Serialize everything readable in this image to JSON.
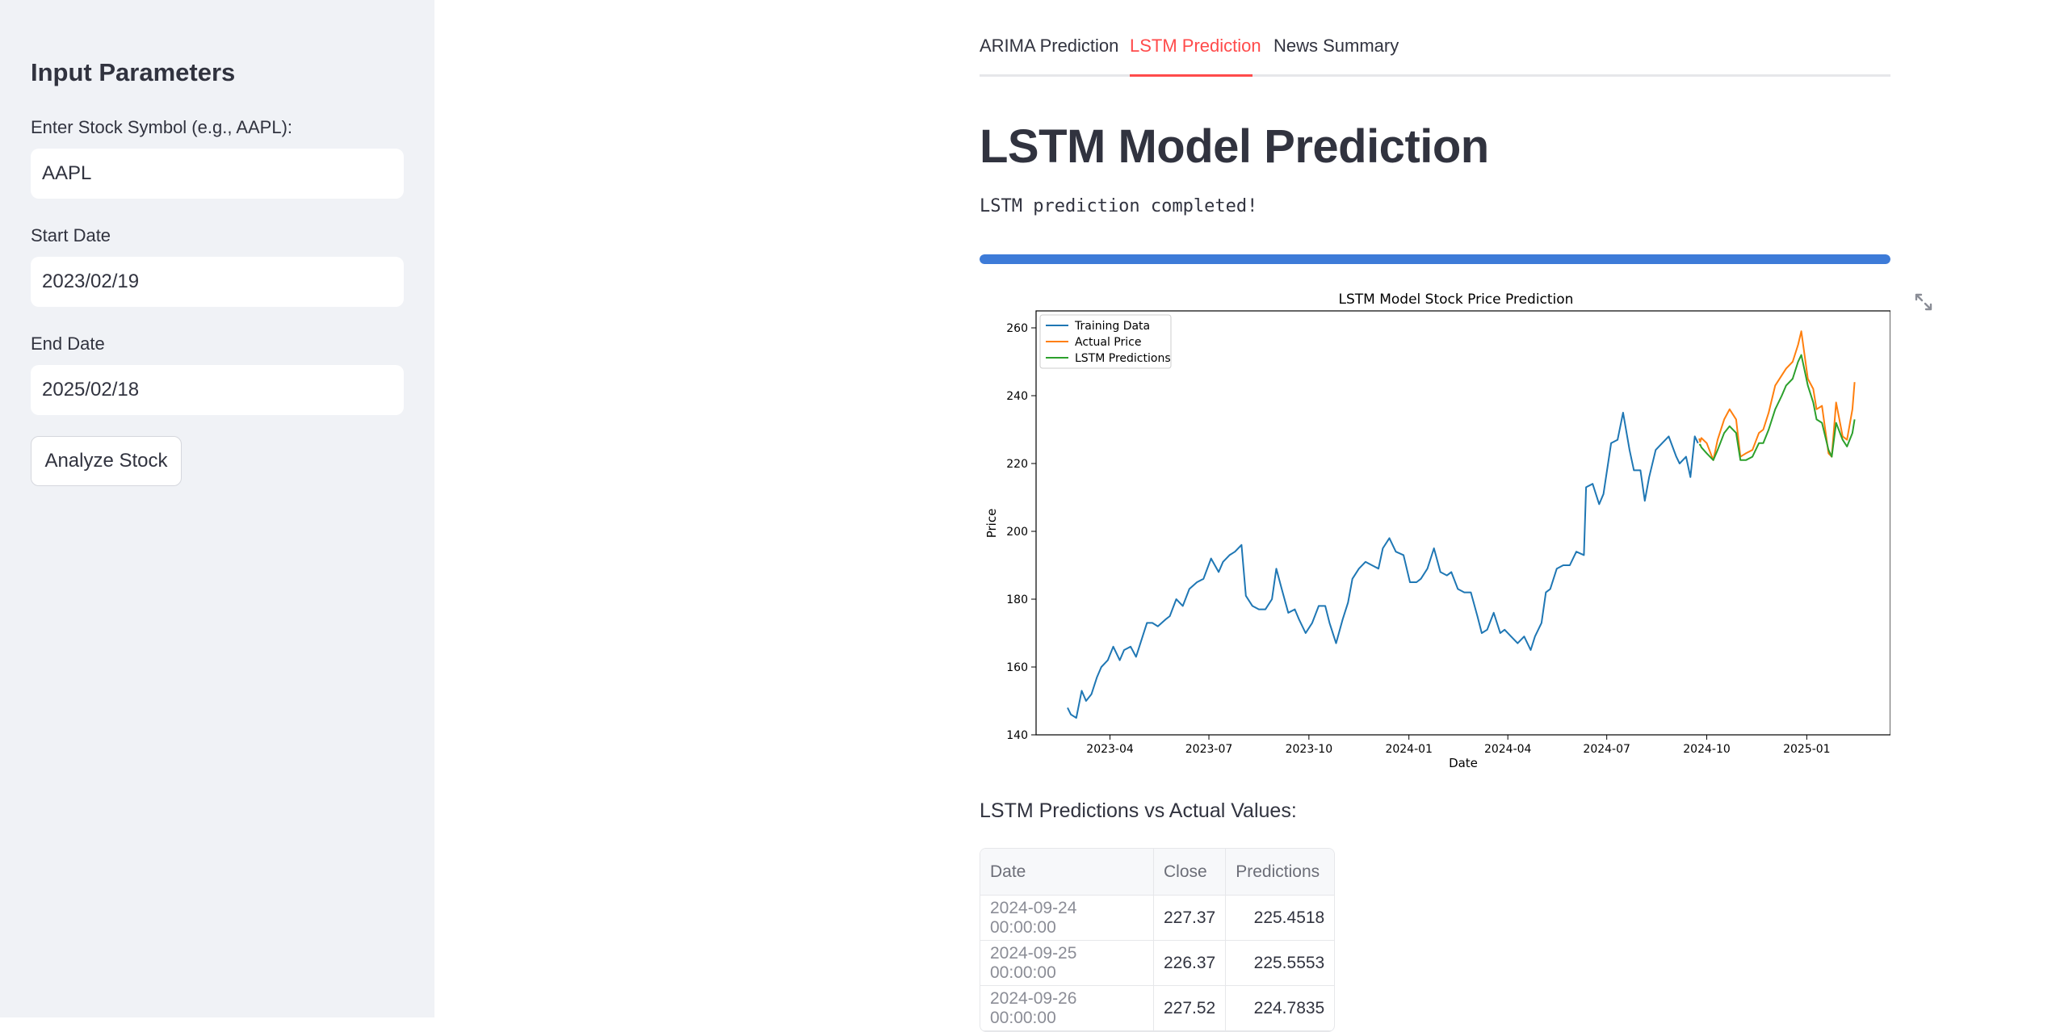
{
  "sidebar": {
    "title": "Input Parameters",
    "symbol_label": "Enter Stock Symbol (e.g., AAPL):",
    "symbol_value": "AAPL",
    "start_label": "Start Date",
    "start_value": "2023/02/19",
    "end_label": "End Date",
    "end_value": "2025/02/18",
    "analyze_button": "Analyze Stock"
  },
  "tabs": [
    {
      "label": "ARIMA Prediction",
      "active": false
    },
    {
      "label": "LSTM Prediction",
      "active": true
    },
    {
      "label": "News Summary",
      "active": false
    }
  ],
  "main": {
    "title": "LSTM Model Prediction",
    "status": "LSTM prediction completed!",
    "progress": 1.0,
    "table_caption": "LSTM Predictions vs Actual Values:",
    "table": {
      "headers": [
        "Date",
        "Close",
        "Predictions"
      ],
      "rows": [
        [
          "2024-09-24 00:00:00",
          "227.37",
          "225.4518"
        ],
        [
          "2024-09-25 00:00:00",
          "226.37",
          "225.5553"
        ],
        [
          "2024-09-26 00:00:00",
          "227.52",
          "224.7835"
        ]
      ]
    }
  },
  "colors": {
    "accent": "#ff4b4b",
    "progress": "#3d7bd8",
    "training": "#1f77b4",
    "actual": "#ff7f0e",
    "predictions": "#2ca02c"
  },
  "chart_data": {
    "type": "line",
    "title": "LSTM Model Stock Price Prediction",
    "xlabel": "Date",
    "ylabel": "Price",
    "ylim": [
      140,
      265
    ],
    "xlim": [
      "2023-01-23",
      "2025-03-19"
    ],
    "y_ticks": [
      140,
      160,
      180,
      200,
      220,
      240,
      260
    ],
    "x_ticks": [
      "2023-04",
      "2023-07",
      "2023-10",
      "2024-01",
      "2024-04",
      "2024-07",
      "2024-10",
      "2025-01"
    ],
    "legend_position": "top-left",
    "grid": false,
    "series": [
      {
        "name": "Training Data",
        "points": [
          [
            "2023-02-21",
            148
          ],
          [
            "2023-02-24",
            146
          ],
          [
            "2023-03-01",
            145
          ],
          [
            "2023-03-06",
            153
          ],
          [
            "2023-03-10",
            150
          ],
          [
            "2023-03-15",
            152
          ],
          [
            "2023-03-20",
            157
          ],
          [
            "2023-03-24",
            160
          ],
          [
            "2023-03-30",
            162
          ],
          [
            "2023-04-04",
            166
          ],
          [
            "2023-04-10",
            162
          ],
          [
            "2023-04-14",
            165
          ],
          [
            "2023-04-20",
            166
          ],
          [
            "2023-04-25",
            163
          ],
          [
            "2023-05-01",
            169
          ],
          [
            "2023-05-05",
            173
          ],
          [
            "2023-05-10",
            173
          ],
          [
            "2023-05-15",
            172
          ],
          [
            "2023-05-22",
            174
          ],
          [
            "2023-05-26",
            175
          ],
          [
            "2023-06-01",
            180
          ],
          [
            "2023-06-07",
            178
          ],
          [
            "2023-06-13",
            183
          ],
          [
            "2023-06-20",
            185
          ],
          [
            "2023-06-26",
            186
          ],
          [
            "2023-07-03",
            192
          ],
          [
            "2023-07-10",
            188
          ],
          [
            "2023-07-14",
            191
          ],
          [
            "2023-07-20",
            193
          ],
          [
            "2023-07-25",
            194
          ],
          [
            "2023-07-31",
            196
          ],
          [
            "2023-08-04",
            181
          ],
          [
            "2023-08-10",
            178
          ],
          [
            "2023-08-16",
            177
          ],
          [
            "2023-08-22",
            177
          ],
          [
            "2023-08-28",
            180
          ],
          [
            "2023-09-01",
            189
          ],
          [
            "2023-09-06",
            183
          ],
          [
            "2023-09-12",
            176
          ],
          [
            "2023-09-18",
            177
          ],
          [
            "2023-09-22",
            174
          ],
          [
            "2023-09-28",
            170
          ],
          [
            "2023-10-04",
            173
          ],
          [
            "2023-10-10",
            178
          ],
          [
            "2023-10-16",
            178
          ],
          [
            "2023-10-20",
            173
          ],
          [
            "2023-10-26",
            167
          ],
          [
            "2023-11-01",
            174
          ],
          [
            "2023-11-06",
            179
          ],
          [
            "2023-11-10",
            186
          ],
          [
            "2023-11-16",
            189
          ],
          [
            "2023-11-22",
            191
          ],
          [
            "2023-11-28",
            190
          ],
          [
            "2023-12-04",
            189
          ],
          [
            "2023-12-08",
            195
          ],
          [
            "2023-12-14",
            198
          ],
          [
            "2023-12-20",
            194
          ],
          [
            "2023-12-27",
            193
          ],
          [
            "2024-01-02",
            185
          ],
          [
            "2024-01-08",
            185
          ],
          [
            "2024-01-12",
            186
          ],
          [
            "2024-01-18",
            189
          ],
          [
            "2024-01-24",
            195
          ],
          [
            "2024-01-30",
            188
          ],
          [
            "2024-02-05",
            187
          ],
          [
            "2024-02-09",
            188
          ],
          [
            "2024-02-15",
            183
          ],
          [
            "2024-02-21",
            182
          ],
          [
            "2024-02-27",
            182
          ],
          [
            "2024-03-04",
            175
          ],
          [
            "2024-03-08",
            170
          ],
          [
            "2024-03-13",
            171
          ],
          [
            "2024-03-19",
            176
          ],
          [
            "2024-03-25",
            170
          ],
          [
            "2024-03-29",
            171
          ],
          [
            "2024-04-04",
            169
          ],
          [
            "2024-04-10",
            167
          ],
          [
            "2024-04-16",
            169
          ],
          [
            "2024-04-22",
            165
          ],
          [
            "2024-04-26",
            169
          ],
          [
            "2024-05-02",
            173
          ],
          [
            "2024-05-06",
            182
          ],
          [
            "2024-05-10",
            183
          ],
          [
            "2024-05-16",
            189
          ],
          [
            "2024-05-22",
            190
          ],
          [
            "2024-05-28",
            190
          ],
          [
            "2024-06-03",
            194
          ],
          [
            "2024-06-10",
            193
          ],
          [
            "2024-06-12",
            213
          ],
          [
            "2024-06-18",
            214
          ],
          [
            "2024-06-24",
            208
          ],
          [
            "2024-06-28",
            211
          ],
          [
            "2024-07-05",
            226
          ],
          [
            "2024-07-11",
            227
          ],
          [
            "2024-07-16",
            235
          ],
          [
            "2024-07-22",
            224
          ],
          [
            "2024-07-26",
            218
          ],
          [
            "2024-08-01",
            218
          ],
          [
            "2024-08-05",
            209
          ],
          [
            "2024-08-09",
            216
          ],
          [
            "2024-08-15",
            224
          ],
          [
            "2024-08-21",
            226
          ],
          [
            "2024-08-27",
            228
          ],
          [
            "2024-09-03",
            222
          ],
          [
            "2024-09-06",
            220
          ],
          [
            "2024-09-12",
            222
          ],
          [
            "2024-09-16",
            216
          ],
          [
            "2024-09-20",
            228
          ],
          [
            "2024-09-23",
            226
          ]
        ]
      },
      {
        "name": "Actual Price",
        "points": [
          [
            "2024-09-24",
            227.37
          ],
          [
            "2024-09-25",
            226.37
          ],
          [
            "2024-09-26",
            227.52
          ],
          [
            "2024-10-01",
            226
          ],
          [
            "2024-10-07",
            221
          ],
          [
            "2024-10-11",
            227
          ],
          [
            "2024-10-17",
            233
          ],
          [
            "2024-10-22",
            236
          ],
          [
            "2024-10-28",
            233
          ],
          [
            "2024-11-01",
            222
          ],
          [
            "2024-11-06",
            223
          ],
          [
            "2024-11-12",
            224
          ],
          [
            "2024-11-18",
            229
          ],
          [
            "2024-11-22",
            230
          ],
          [
            "2024-11-27",
            235
          ],
          [
            "2024-12-03",
            243
          ],
          [
            "2024-12-09",
            246
          ],
          [
            "2024-12-13",
            248
          ],
          [
            "2024-12-19",
            250
          ],
          [
            "2024-12-24",
            255
          ],
          [
            "2024-12-27",
            259
          ],
          [
            "2025-01-02",
            245
          ],
          [
            "2025-01-07",
            242
          ],
          [
            "2025-01-10",
            236
          ],
          [
            "2025-01-15",
            237
          ],
          [
            "2025-01-21",
            223
          ],
          [
            "2025-01-24",
            222
          ],
          [
            "2025-01-28",
            238
          ],
          [
            "2025-02-03",
            228
          ],
          [
            "2025-02-07",
            227
          ],
          [
            "2025-02-12",
            236
          ],
          [
            "2025-02-14",
            244
          ]
        ]
      },
      {
        "name": "LSTM Predictions",
        "points": [
          [
            "2024-09-24",
            225.45
          ],
          [
            "2024-09-25",
            225.56
          ],
          [
            "2024-09-26",
            224.78
          ],
          [
            "2024-10-01",
            223
          ],
          [
            "2024-10-07",
            221
          ],
          [
            "2024-10-11",
            224
          ],
          [
            "2024-10-17",
            229
          ],
          [
            "2024-10-22",
            231
          ],
          [
            "2024-10-28",
            229
          ],
          [
            "2024-11-01",
            221
          ],
          [
            "2024-11-06",
            221
          ],
          [
            "2024-11-12",
            222
          ],
          [
            "2024-11-18",
            226
          ],
          [
            "2024-11-22",
            226
          ],
          [
            "2024-11-27",
            230
          ],
          [
            "2024-12-03",
            236
          ],
          [
            "2024-12-09",
            240
          ],
          [
            "2024-12-13",
            243
          ],
          [
            "2024-12-19",
            245
          ],
          [
            "2024-12-24",
            250
          ],
          [
            "2024-12-27",
            252
          ],
          [
            "2025-01-02",
            243
          ],
          [
            "2025-01-07",
            238
          ],
          [
            "2025-01-10",
            233
          ],
          [
            "2025-01-15",
            232
          ],
          [
            "2025-01-21",
            224
          ],
          [
            "2025-01-24",
            222
          ],
          [
            "2025-01-28",
            232
          ],
          [
            "2025-02-03",
            227
          ],
          [
            "2025-02-07",
            225
          ],
          [
            "2025-02-12",
            229
          ],
          [
            "2025-02-14",
            233
          ]
        ]
      }
    ]
  }
}
